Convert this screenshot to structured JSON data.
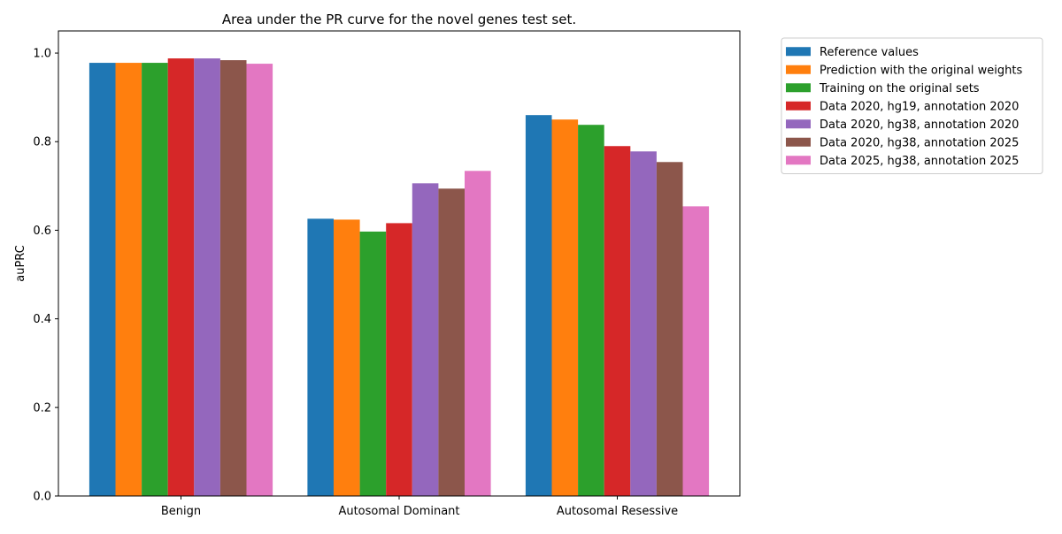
{
  "chart_data": {
    "type": "bar",
    "title": "Area under the PR curve for the novel genes test set.",
    "xlabel": "",
    "ylabel": "auPRC",
    "ylim": [
      0,
      1.05
    ],
    "yticks": [
      "0.0",
      "0.2",
      "0.4",
      "0.6",
      "0.8",
      "1.0"
    ],
    "categories": [
      "Benign",
      "Autosomal Dominant",
      "Autosomal Resessive"
    ],
    "legend_position": "outside-top-right",
    "grid": false,
    "series": [
      {
        "name": "Reference values",
        "color": "#1f77b4",
        "values": [
          0.978,
          0.626,
          0.86
        ]
      },
      {
        "name": "Prediction with the original weights",
        "color": "#ff7f0e",
        "values": [
          0.978,
          0.624,
          0.85
        ]
      },
      {
        "name": "Training on the original sets",
        "color": "#2ca02c",
        "values": [
          0.978,
          0.597,
          0.838
        ]
      },
      {
        "name": "Data 2020, hg19, annotation 2020",
        "color": "#d62728",
        "values": [
          0.988,
          0.616,
          0.79
        ]
      },
      {
        "name": "Data 2020, hg38, annotation 2020",
        "color": "#9467bd",
        "values": [
          0.988,
          0.706,
          0.778
        ]
      },
      {
        "name": "Data 2020, hg38, annotation 2025",
        "color": "#8c564b",
        "values": [
          0.984,
          0.694,
          0.754
        ]
      },
      {
        "name": "Data 2025, hg38, annotation 2025",
        "color": "#e377c2",
        "values": [
          0.976,
          0.734,
          0.654
        ]
      }
    ]
  }
}
